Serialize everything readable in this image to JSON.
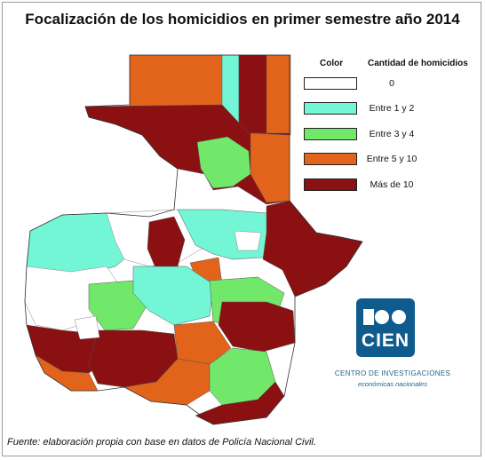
{
  "title": "Focalización de los homicidios en primer semestre año 2014",
  "legend": {
    "color_header": "Color",
    "count_header": "Cantidad de homicidios",
    "items": [
      {
        "label": "0",
        "color": "#ffffff"
      },
      {
        "label": "Entre 1 y 2",
        "color": "#73f6d6"
      },
      {
        "label": "Entre 3 y 4",
        "color": "#72e86a"
      },
      {
        "label": "Entre 5 y 10",
        "color": "#e2641b"
      },
      {
        "label": "Más de 10",
        "color": "#8a1012"
      }
    ]
  },
  "logo": {
    "text": "CIEN",
    "org_name": "CENTRO DE INVESTIGACIONES",
    "org_sub": "económicas nacionales",
    "color": "#0f5b8e"
  },
  "source": "Fuente: elaboración propia con base en datos de Policía Nacional Civil."
}
